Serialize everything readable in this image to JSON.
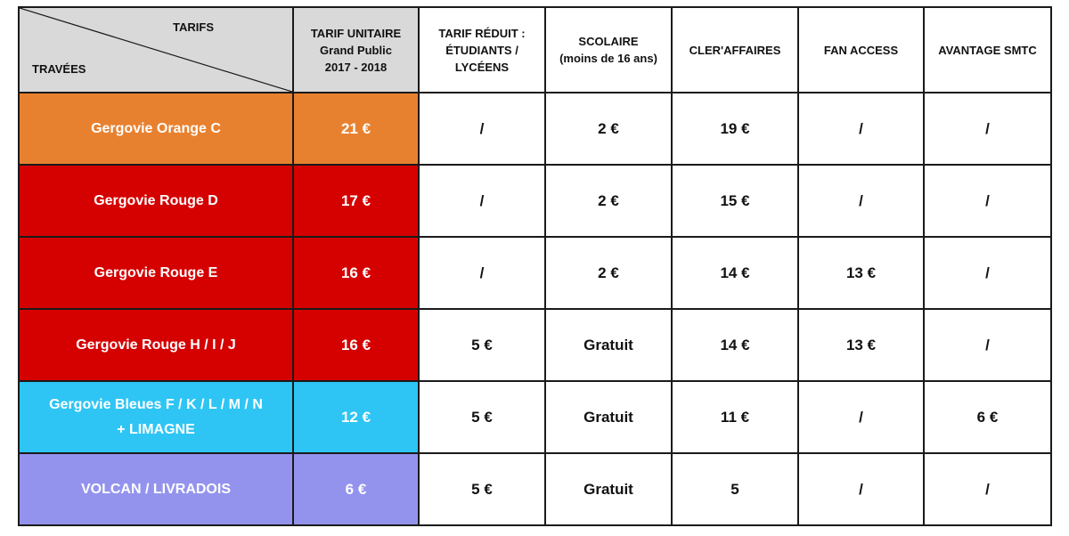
{
  "table": {
    "corner": {
      "top_label": "TARIFS",
      "bottom_label": "TRAVÉES"
    },
    "headers": [
      {
        "lines": [
          "TARIF UNITAIRE",
          "Grand Public",
          "2017 - 2018"
        ]
      },
      {
        "lines": [
          "TARIF RÉDUIT :",
          "ÉTUDIANTS /",
          "LYCÉENS"
        ]
      },
      {
        "lines": [
          "SCOLAIRE",
          "(moins de 16 ans)"
        ]
      },
      {
        "lines": [
          "CLER'AFFAIRES"
        ]
      },
      {
        "lines": [
          "FAN ACCESS"
        ]
      },
      {
        "lines": [
          "AVANTAGE SMTC"
        ]
      }
    ],
    "rows": [
      {
        "name_lines": [
          "Gergovie Orange C"
        ],
        "color": "#E8812F",
        "values": [
          "21 €",
          "/",
          "2 €",
          "19 €",
          "/",
          "/"
        ]
      },
      {
        "name_lines": [
          "Gergovie Rouge D"
        ],
        "color": "#D50000",
        "values": [
          "17 €",
          "/",
          "2 €",
          "15 €",
          "/",
          "/"
        ]
      },
      {
        "name_lines": [
          "Gergovie Rouge  E"
        ],
        "color": "#D50000",
        "values": [
          "16 €",
          "/",
          "2 €",
          "14 €",
          "13 €",
          "/"
        ]
      },
      {
        "name_lines": [
          "Gergovie Rouge H / I / J"
        ],
        "color": "#D50000",
        "values": [
          "16 €",
          "5 €",
          "Gratuit",
          "14 €",
          "13 €",
          "/"
        ]
      },
      {
        "name_lines": [
          "Gergovie Bleues F / K / L / M / N",
          "+ LIMAGNE"
        ],
        "color": "#2EC5F4",
        "values": [
          "12 €",
          "5 €",
          "Gratuit",
          "11 €",
          "/",
          "6 €"
        ]
      },
      {
        "name_lines": [
          "VOLCAN / LIVRADOIS"
        ],
        "color": "#9393EE",
        "values": [
          "6 €",
          "5 €",
          "Gratuit",
          "5",
          "/",
          "/"
        ]
      }
    ]
  }
}
